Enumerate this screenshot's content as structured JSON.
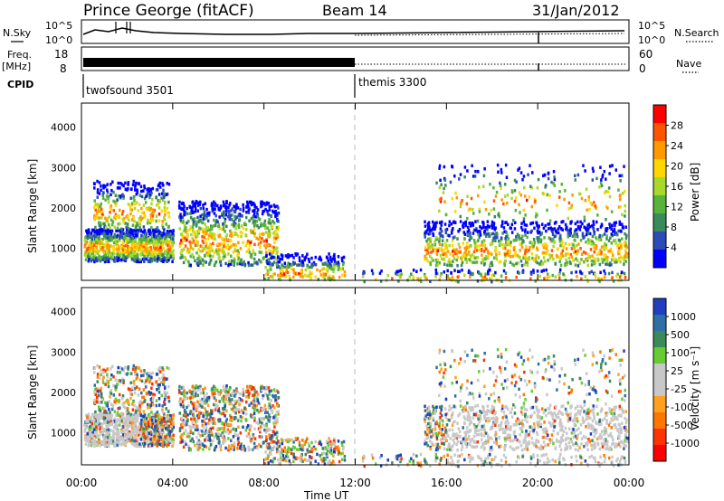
{
  "header": {
    "station": "Prince George (fitACF)",
    "beam": "Beam 14",
    "date": "31/Jan/2012"
  },
  "nsky_panel": {
    "left_label": "N.Sky",
    "left_ticks": [
      "10^5",
      "10^0"
    ],
    "right_ticks": [
      "10^5",
      "10^0"
    ],
    "right_label": "N.Search"
  },
  "freq_panel": {
    "left_label_1": "Freq.",
    "left_label_2": "[MHz]",
    "left_ticks": [
      "18",
      "8"
    ],
    "right_ticks": [
      "60",
      "0"
    ],
    "right_label": "Nave"
  },
  "cpid_panel": {
    "label": "CPID",
    "programs": [
      {
        "name": "twofsound 3501",
        "start_hour": 0
      },
      {
        "name": "themis 3300",
        "start_hour": 12
      }
    ]
  },
  "chart_data": [
    {
      "type": "heatmap",
      "quantity": "power",
      "ylabel": "Slant Range [km]",
      "xlim_hours": [
        0,
        24
      ],
      "ylim": [
        200,
        4600
      ],
      "y_ticks": [
        "4000",
        "3000",
        "2000",
        "1000"
      ],
      "colorbar": {
        "label": "Power [dB]",
        "colors": [
          "#0000ff",
          "#2b4cb8",
          "#3a8a5c",
          "#57b33a",
          "#a8d92a",
          "#ffd700",
          "#ff9900",
          "#ff5500",
          "#ff0000"
        ],
        "tick_labels": [
          "4",
          "8",
          "12",
          "16",
          "20",
          "24",
          "28"
        ]
      }
    },
    {
      "type": "heatmap",
      "quantity": "velocity",
      "xlabel": "Time UT",
      "ylabel": "Slant Range [km]",
      "xlim_hours": [
        0,
        24
      ],
      "ylim": [
        200,
        4600
      ],
      "y_ticks": [
        "4000",
        "3000",
        "2000",
        "1000"
      ],
      "x_ticks": [
        "00:00",
        "04:00",
        "08:00",
        "12:00",
        "16:00",
        "20:00",
        "00:00"
      ],
      "colorbar": {
        "label": "Velocity [m s⁻¹]",
        "colors": [
          "#1f3fbf",
          "#2e6fa8",
          "#3a8a5c",
          "#66cc33",
          "#c8c8c8",
          "#c8c8c8",
          "#ffa020",
          "#ff7700",
          "#ff3300",
          "#ff0000"
        ],
        "tick_labels": [
          "1000",
          "500",
          "100",
          "25",
          "-25",
          "-100",
          "-500",
          "-1000"
        ]
      }
    }
  ],
  "colors": {
    "ground_scatter": "#c8c8c8",
    "dashed_line": "#bbbbbb"
  }
}
